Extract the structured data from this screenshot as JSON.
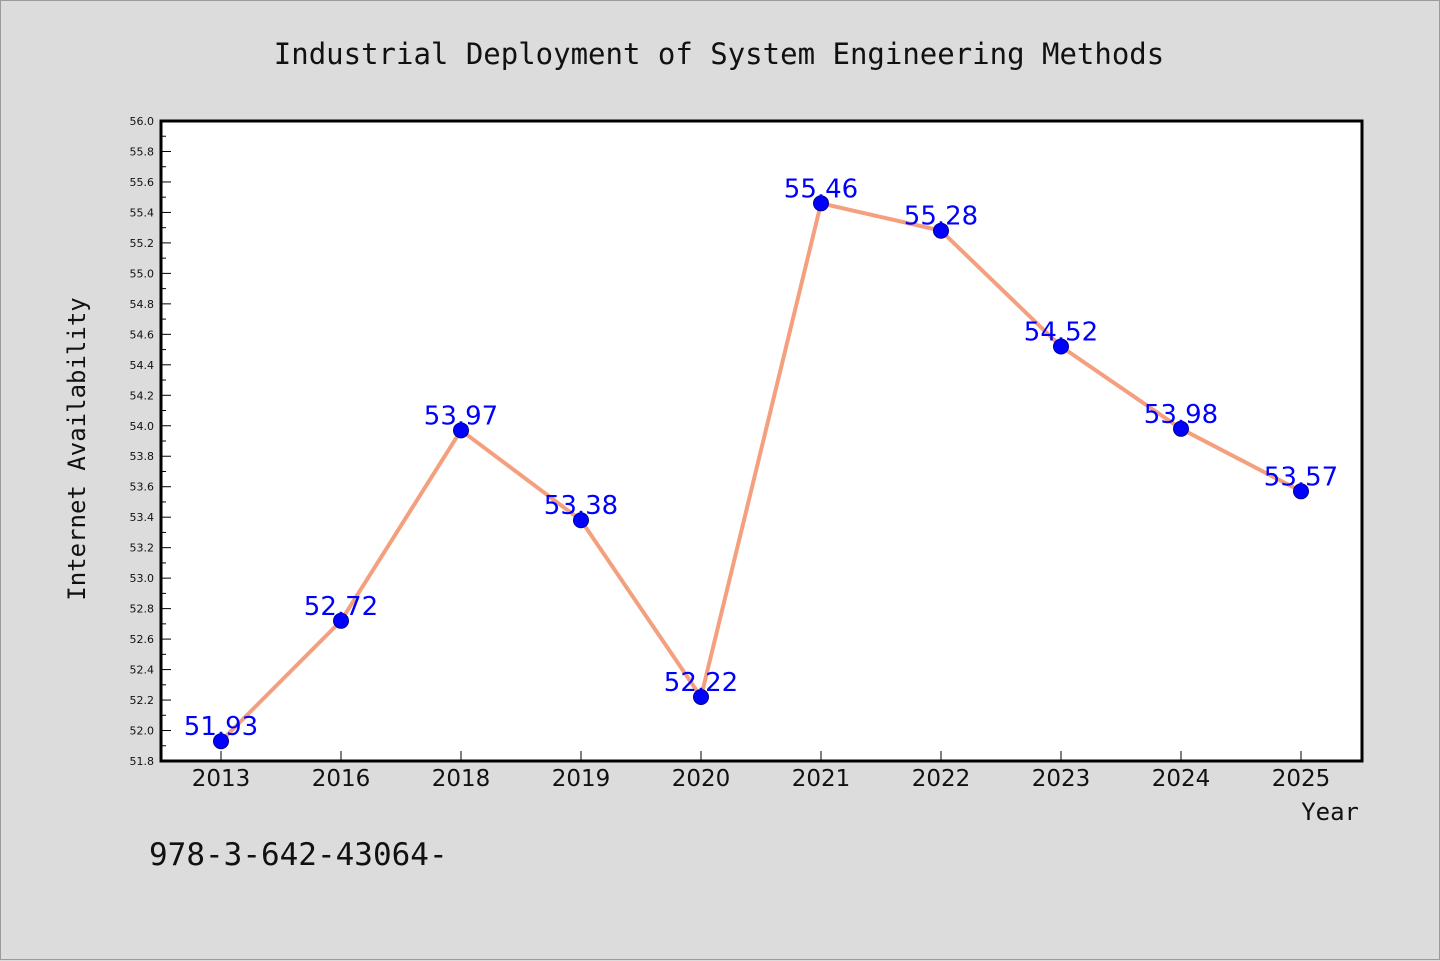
{
  "chart_data": {
    "type": "line",
    "title": "Industrial Deployment of System Engineering Methods",
    "xlabel": "Year",
    "ylabel": "Internet Availability",
    "categories": [
      "2013",
      "2016",
      "2018",
      "2019",
      "2020",
      "2021",
      "2022",
      "2023",
      "2024",
      "2025"
    ],
    "series": [
      {
        "values": [
          51.93,
          52.72,
          53.97,
          53.38,
          52.22,
          55.46,
          55.28,
          54.52,
          53.98,
          53.57
        ],
        "labels": [
          "51.93",
          "52.72",
          "53.97",
          "53.38",
          "52.22",
          "55.46",
          "55.28",
          "54.52",
          "53.98",
          "53.57"
        ]
      }
    ],
    "ylim": [
      51.8,
      56.0
    ],
    "yticks": [
      "51.8",
      "52.0",
      "52.2",
      "52.4",
      "52.6",
      "52.8",
      "53.0",
      "53.2",
      "53.4",
      "53.6",
      "53.8",
      "54.0",
      "54.2",
      "54.4",
      "54.6",
      "54.8",
      "55.0",
      "55.2",
      "55.4",
      "55.6",
      "55.8",
      "56.0"
    ],
    "grid": false,
    "colors": {
      "line": "#f4a07f",
      "marker": "#0000ff",
      "label": "#0000ff"
    }
  },
  "footer": {
    "text": "978-3-642-43064-"
  }
}
